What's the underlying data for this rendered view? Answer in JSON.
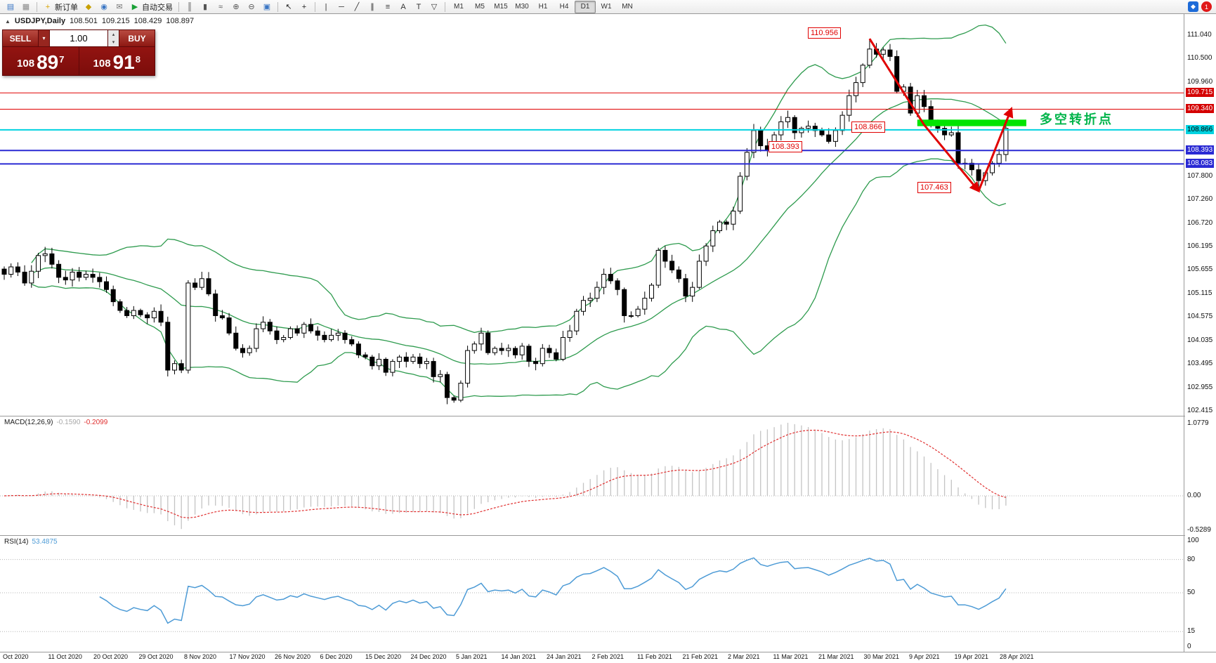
{
  "toolbar": {
    "groups": [
      [
        {
          "name": "new-chart-icon",
          "glyph": "▤",
          "color": "#3a76c4"
        },
        {
          "name": "chart-profiles-icon",
          "glyph": "▦",
          "color": "#888888"
        }
      ],
      [
        {
          "name": "new-order-button",
          "glyph": "+",
          "color": "#d9a400",
          "label": "新订单"
        },
        {
          "name": "history-center-icon",
          "glyph": "◆",
          "color": "#c8a000"
        },
        {
          "name": "alerts-icon",
          "glyph": "◉",
          "color": "#3a76c4"
        },
        {
          "name": "mailbox-icon",
          "glyph": "✉",
          "color": "#777777"
        },
        {
          "name": "auto-trading-button",
          "glyph": "▶",
          "color": "#18a035",
          "label": "自动交易"
        }
      ],
      [
        {
          "name": "bar-chart-icon",
          "glyph": "║",
          "color": "#555555"
        },
        {
          "name": "candlestick-chart-icon",
          "glyph": "▮",
          "color": "#555555"
        },
        {
          "name": "line-chart-icon",
          "glyph": "≈",
          "color": "#555555"
        },
        {
          "name": "zoom-in-icon",
          "glyph": "⊕",
          "color": "#555555"
        },
        {
          "name": "zoom-out-icon",
          "glyph": "⊖",
          "color": "#555555"
        },
        {
          "name": "tile-windows-icon",
          "glyph": "▣",
          "color": "#3a76c4"
        }
      ],
      [
        {
          "name": "cursor-icon",
          "glyph": "↖",
          "color": "#222222"
        },
        {
          "name": "crosshair-icon",
          "glyph": "+",
          "color": "#222222"
        }
      ],
      [
        {
          "name": "vertical-line-icon",
          "glyph": "|",
          "color": "#333333"
        },
        {
          "name": "horizontal-line-icon",
          "glyph": "─",
          "color": "#333333"
        },
        {
          "name": "trendline-icon",
          "glyph": "╱",
          "color": "#333333"
        },
        {
          "name": "channel-icon",
          "glyph": "∥",
          "color": "#333333"
        },
        {
          "name": "fibonacci-icon",
          "glyph": "≡",
          "color": "#333333"
        },
        {
          "name": "text-icon",
          "glyph": "A",
          "color": "#333333"
        },
        {
          "name": "label-icon",
          "glyph": "T",
          "color": "#333333"
        },
        {
          "name": "shapes-icon",
          "glyph": "▽",
          "color": "#333333"
        }
      ]
    ],
    "timeframes": [
      {
        "label": "M1"
      },
      {
        "label": "M5"
      },
      {
        "label": "M15"
      },
      {
        "label": "M30"
      },
      {
        "label": "H1"
      },
      {
        "label": "H4"
      },
      {
        "label": "D1",
        "active": true
      },
      {
        "label": "W1"
      },
      {
        "label": "MN"
      }
    ],
    "right_items": [
      {
        "name": "community-icon",
        "glyph": "◆",
        "bg": "#1d6bd8",
        "fg": "#ffffff"
      },
      {
        "name": "notification-badge",
        "glyph": "1",
        "bg": "#e01818",
        "fg": "#ffffff",
        "round": true
      }
    ]
  },
  "chart_header": {
    "symbol_period": "USDJPY,Daily",
    "open": "108.501",
    "high": "109.215",
    "low": "108.429",
    "close": "108.897"
  },
  "trade_panel": {
    "sell_label": "SELL",
    "buy_label": "BUY",
    "volume": "1.00",
    "dropdown_glyph": "▾",
    "spin_up": "▴",
    "spin_down": "▾",
    "bid_handle": "108",
    "bid_big": "89",
    "bid_sup": "7",
    "ask_handle": "108",
    "ask_big": "91",
    "ask_sup": "8"
  },
  "annotations": {
    "swing_high": "110.956",
    "zone_price": "108.866",
    "support": "108.393",
    "swing_low": "107.463",
    "note": "多空转折点"
  },
  "indicators": {
    "macd_name": "MACD(12,26,9)",
    "macd_value": "-0.1590",
    "macd_signal": "-0.2099",
    "rsi_name": "RSI(14)",
    "rsi_value": "53.4875"
  },
  "axis": {
    "price_labels": [
      "111.040",
      "110.500",
      "109.960",
      "107.800",
      "107.260",
      "106.720",
      "106.195",
      "105.655",
      "105.115",
      "104.575",
      "104.035",
      "103.495",
      "102.955",
      "102.415"
    ],
    "tagged_labels": [
      {
        "text": "109.715",
        "bg": "#d40000",
        "fg": "#ffffff"
      },
      {
        "text": "109.340",
        "bg": "#d40000",
        "fg": "#ffffff"
      },
      {
        "text": "108.866",
        "bg": "#00d2e0",
        "fg": "#000000"
      },
      {
        "text": "108.393",
        "bg": "#2a2ad4",
        "fg": "#ffffff"
      },
      {
        "text": "108.083",
        "bg": "#2a2ad4",
        "fg": "#ffffff"
      }
    ],
    "macd_labels": [
      "1.0779",
      "0.00",
      "-0.5289"
    ],
    "rsi_labels": [
      "100",
      "80",
      "50",
      "15",
      "0"
    ],
    "dates": [
      "Oct 2020",
      "11 Oct 2020",
      "20 Oct 2020",
      "29 Oct 2020",
      "8 Nov 2020",
      "17 Nov 2020",
      "26 Nov 2020",
      "6 Dec 2020",
      "15 Dec 2020",
      "24 Dec 2020",
      "5 Jan 2021",
      "14 Jan 2021",
      "24 Jan 2021",
      "2 Feb 2021",
      "11 Feb 2021",
      "21 Feb 2021",
      "2 Mar 2021",
      "11 Mar 2021",
      "21 Mar 2021",
      "30 Mar 2021",
      "9 Apr 2021",
      "19 Apr 2021",
      "28 Apr 2021"
    ]
  },
  "colors": {
    "bollinger": "#2e9b4e",
    "candle_up": "#ffffff",
    "candle_down": "#000000",
    "candle_line": "#000000",
    "level_red": "#e00000",
    "level_cyan": "#00d2e0",
    "level_blue": "#2a2ad4",
    "zone_green": "#00e400",
    "trend_red": "#e00000",
    "macd_hist": "#c4c4c4",
    "macd_signal": "#e03030",
    "rsi_line": "#4d9bd6",
    "grid_dotted": "#b4b4b4",
    "divider": "#9a9a9a"
  },
  "chart_data": {
    "type": "candlestick",
    "symbol": "USDJPY",
    "period": "Daily",
    "x_axis_dates": [
      "Oct 2020",
      "11 Oct 2020",
      "20 Oct 2020",
      "29 Oct 2020",
      "8 Nov 2020",
      "17 Nov 2020",
      "26 Nov 2020",
      "6 Dec 2020",
      "15 Dec 2020",
      "24 Dec 2020",
      "5 Jan 2021",
      "14 Jan 2021",
      "24 Jan 2021",
      "2 Feb 2021",
      "11 Feb 2021",
      "21 Feb 2021",
      "2 Mar 2021",
      "11 Mar 2021",
      "21 Mar 2021",
      "30 Mar 2021",
      "9 Apr 2021",
      "19 Apr 2021",
      "28 Apr 2021"
    ],
    "ylim": [
      102.415,
      111.04
    ],
    "closes": [
      105.55,
      105.72,
      105.6,
      105.35,
      105.62,
      105.98,
      106.02,
      105.78,
      105.48,
      105.42,
      105.6,
      105.48,
      105.55,
      105.48,
      105.38,
      105.2,
      104.92,
      104.72,
      104.6,
      104.72,
      104.62,
      104.55,
      104.7,
      104.45,
      103.35,
      103.5,
      103.35,
      105.35,
      105.25,
      105.45,
      105.1,
      104.6,
      104.55,
      104.2,
      103.85,
      103.75,
      103.85,
      104.3,
      104.45,
      104.25,
      104.05,
      104.1,
      104.3,
      104.2,
      104.4,
      104.25,
      104.15,
      104.05,
      104.15,
      104.2,
      104.05,
      103.95,
      103.7,
      103.65,
      103.45,
      103.6,
      103.3,
      103.55,
      103.65,
      103.55,
      103.65,
      103.5,
      103.55,
      103.2,
      103.25,
      102.72,
      102.66,
      103.05,
      103.8,
      103.95,
      104.2,
      103.75,
      103.85,
      103.8,
      103.85,
      103.7,
      103.9,
      103.55,
      103.5,
      103.85,
      103.75,
      103.6,
      104.1,
      104.25,
      104.7,
      104.95,
      105.0,
      105.25,
      105.55,
      105.4,
      105.2,
      104.6,
      104.6,
      104.75,
      105.0,
      105.3,
      106.1,
      105.85,
      105.65,
      105.45,
      105.05,
      105.25,
      105.85,
      106.2,
      106.55,
      106.75,
      106.7,
      107.0,
      107.8,
      108.35,
      108.85,
      108.5,
      108.4,
      108.75,
      109.05,
      109.15,
      108.8,
      108.9,
      108.95,
      108.85,
      108.75,
      108.6,
      108.85,
      109.2,
      109.65,
      109.95,
      110.35,
      110.72,
      110.6,
      110.7,
      110.55,
      109.75,
      109.85,
      109.25,
      109.65,
      109.4,
      109.05,
      108.9,
      108.75,
      108.8,
      108.1,
      108.1,
      107.95,
      107.7,
      107.88,
      108.1,
      108.3,
      108.9
    ],
    "key_points": {
      "swing_high": 110.956,
      "swing_low": 107.463,
      "last_close": 108.897
    },
    "horizontal_levels": [
      {
        "price": 109.715,
        "color": "#e00000",
        "w": 1
      },
      {
        "price": 109.34,
        "color": "#e00000",
        "w": 1
      },
      {
        "price": 108.866,
        "color": "#00d2e0",
        "w": 2
      },
      {
        "price": 108.393,
        "color": "#2a2ad4",
        "w": 2
      },
      {
        "price": 108.083,
        "color": "#2a2ad4",
        "w": 2
      }
    ],
    "zone": {
      "start_index": 134,
      "end_index": 150,
      "from_price": 109.1,
      "to_price": 108.95
    },
    "trend_lines": [
      {
        "points": [
          [
            127,
            110.956
          ],
          [
            135,
            108.98
          ],
          [
            143,
            107.463
          ]
        ]
      },
      {
        "points": [
          [
            143,
            107.463
          ],
          [
            147.8,
            109.35
          ]
        ]
      }
    ],
    "indicators": {
      "bollinger": {
        "period": 20,
        "deviation": 2
      },
      "macd": {
        "fast": 12,
        "slow": 26,
        "signal": 9,
        "value": -0.159,
        "signal_value": -0.2099,
        "scale_max": 1.0779,
        "scale_min": -0.5289
      },
      "rsi": {
        "period": 14,
        "value": 53.4875,
        "levels": [
          80,
          50,
          15
        ]
      }
    }
  }
}
